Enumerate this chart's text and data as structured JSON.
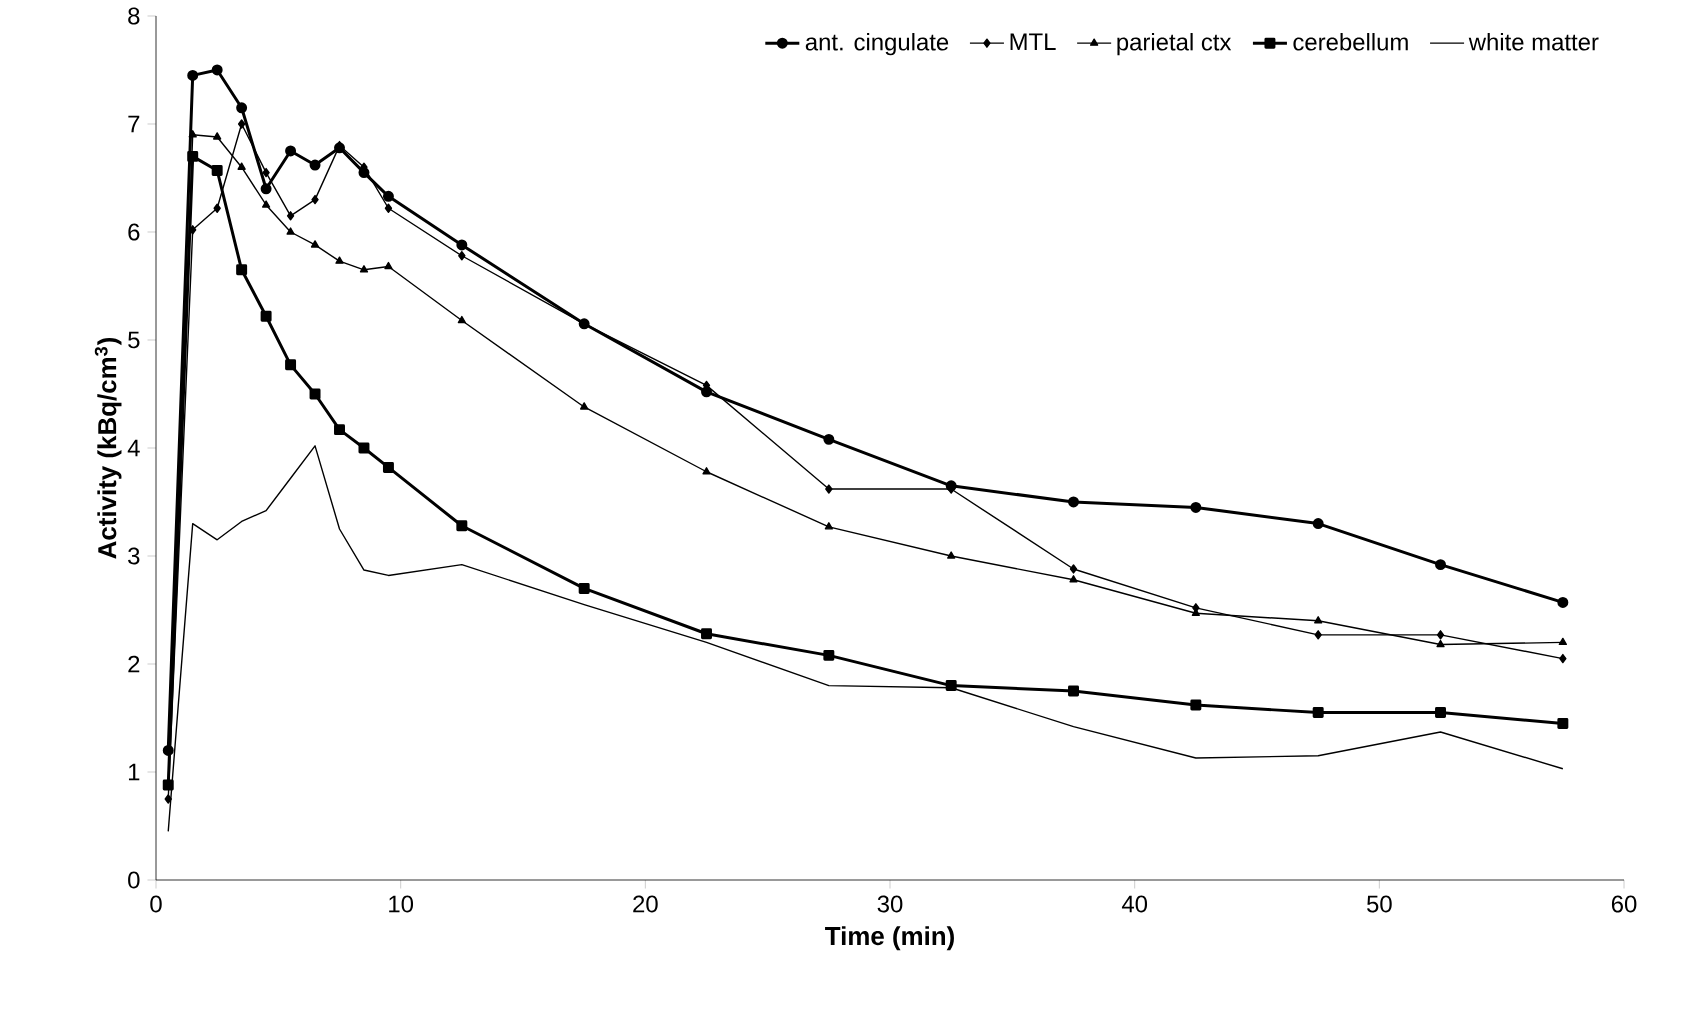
{
  "chart_data": {
    "type": "line",
    "xlabel": "Time (min)",
    "ylabel": "Activity (kBq/cm$^{3}$)",
    "x": [
      0.5,
      1.5,
      2.5,
      3.5,
      4.5,
      5.5,
      6.5,
      7.5,
      8.5,
      9.5,
      12.5,
      17.5,
      22.5,
      27.5,
      32.5,
      37.5,
      42.5,
      47.5,
      52.5,
      57.5
    ],
    "xlim": [
      0,
      60
    ],
    "xticks": [
      0,
      10,
      20,
      30,
      40,
      50,
      60
    ],
    "ylim": [
      0,
      8
    ],
    "yticks": [
      0,
      1,
      2,
      3,
      4,
      5,
      6,
      7,
      8
    ],
    "legend": "top right",
    "grid": false,
    "line_style": "solid",
    "series": [
      {
        "name": "ant. cingulate",
        "color": "#000000",
        "marker": "circle",
        "values": [
          1.2,
          7.45,
          7.5,
          7.15,
          6.4,
          6.75,
          6.62,
          6.78,
          6.55,
          6.33,
          5.88,
          5.15,
          4.52,
          4.08,
          3.65,
          3.5,
          3.45,
          3.3,
          2.92,
          2.57
        ]
      },
      {
        "name": "MTL",
        "color": "#000000",
        "marker": "diamond",
        "values": [
          0.75,
          6.02,
          6.22,
          7.0,
          6.55,
          6.15,
          6.3,
          6.8,
          6.6,
          6.22,
          5.78,
          5.15,
          4.58,
          3.62,
          3.62,
          2.88,
          2.52,
          2.27,
          2.27,
          2.05
        ]
      },
      {
        "name": "parietal ctx",
        "color": "#000000",
        "marker": "triangle",
        "values": [
          0.9,
          6.9,
          6.88,
          6.6,
          6.25,
          6.0,
          5.88,
          5.73,
          5.65,
          5.68,
          5.18,
          4.38,
          3.78,
          3.27,
          3.0,
          2.78,
          2.47,
          2.4,
          2.18,
          2.2
        ]
      },
      {
        "name": "cerebellum",
        "color": "#000000",
        "marker": "square",
        "values": [
          0.88,
          6.7,
          6.57,
          5.65,
          5.22,
          4.77,
          4.5,
          4.17,
          4.0,
          3.82,
          3.28,
          2.7,
          2.28,
          2.08,
          1.8,
          1.75,
          1.62,
          1.55,
          1.55,
          1.45
        ]
      },
      {
        "name": "white matter",
        "color": "#000000",
        "marker": "none",
        "values": [
          0.45,
          3.3,
          3.15,
          3.32,
          3.42,
          3.72,
          4.02,
          3.25,
          2.87,
          2.82,
          2.92,
          2.55,
          2.2,
          1.8,
          1.78,
          1.42,
          1.13,
          1.15,
          1.37,
          1.03
        ]
      }
    ]
  }
}
